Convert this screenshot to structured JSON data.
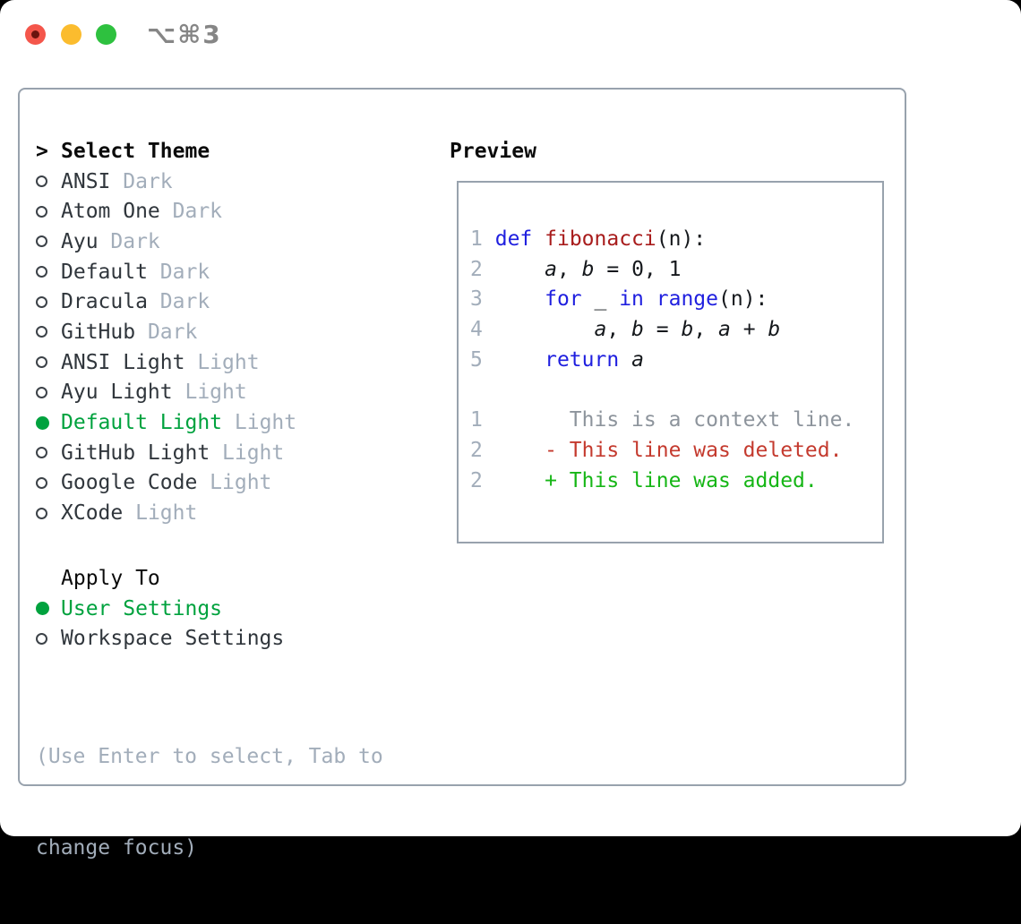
{
  "window": {
    "shortcut_label": "⌥⌘3",
    "traffic_lights": [
      {
        "name": "close",
        "color": "#f4564b"
      },
      {
        "name": "minimize",
        "color": "#fbbc2e"
      },
      {
        "name": "zoom",
        "color": "#2ec13f"
      }
    ]
  },
  "theme_panel": {
    "prompt": ">",
    "header": "Select Theme",
    "themes": [
      {
        "name": "ANSI",
        "variant": "Dark",
        "selected": false
      },
      {
        "name": "Atom One",
        "variant": "Dark",
        "selected": false
      },
      {
        "name": "Ayu",
        "variant": "Dark",
        "selected": false
      },
      {
        "name": "Default",
        "variant": "Dark",
        "selected": false
      },
      {
        "name": "Dracula",
        "variant": "Dark",
        "selected": false
      },
      {
        "name": "GitHub",
        "variant": "Dark",
        "selected": false
      },
      {
        "name": "ANSI Light",
        "variant": "Light",
        "selected": false
      },
      {
        "name": "Ayu Light",
        "variant": "Light",
        "selected": false
      },
      {
        "name": "Default Light",
        "variant": "Light",
        "selected": true
      },
      {
        "name": "GitHub Light",
        "variant": "Light",
        "selected": false
      },
      {
        "name": "Google Code",
        "variant": "Light",
        "selected": false
      },
      {
        "name": "XCode",
        "variant": "Light",
        "selected": false
      }
    ],
    "apply_to": {
      "header": "Apply To",
      "options": [
        {
          "label": "User Settings",
          "selected": true
        },
        {
          "label": "Workspace Settings",
          "selected": false
        }
      ]
    },
    "help_lines": [
      "(Use Enter to select, Tab to",
      "change focus)"
    ]
  },
  "preview": {
    "header": "Preview",
    "code_lines": [
      [
        [
          "num",
          "1"
        ],
        [
          "pl",
          " "
        ],
        [
          "kw",
          "def"
        ],
        [
          "pl",
          " "
        ],
        [
          "fn",
          "fibonacci"
        ],
        [
          "pl",
          "(n):"
        ]
      ],
      [
        [
          "num",
          "2"
        ],
        [
          "pl",
          "     "
        ],
        [
          "var",
          "a"
        ],
        [
          "pl",
          ", "
        ],
        [
          "var",
          "b"
        ],
        [
          "pl",
          " = 0, 1"
        ]
      ],
      [
        [
          "num",
          "3"
        ],
        [
          "pl",
          "     "
        ],
        [
          "kw",
          "for"
        ],
        [
          "pl",
          " _ "
        ],
        [
          "kw",
          "in"
        ],
        [
          "pl",
          " "
        ],
        [
          "kw",
          "range"
        ],
        [
          "pl",
          "(n):"
        ]
      ],
      [
        [
          "num",
          "4"
        ],
        [
          "pl",
          "         "
        ],
        [
          "var",
          "a"
        ],
        [
          "pl",
          ", "
        ],
        [
          "var",
          "b"
        ],
        [
          "pl",
          " = "
        ],
        [
          "var",
          "b"
        ],
        [
          "pl",
          ", "
        ],
        [
          "var",
          "a"
        ],
        [
          "pl",
          " + "
        ],
        [
          "var",
          "b"
        ]
      ],
      [
        [
          "num",
          "5"
        ],
        [
          "pl",
          "     "
        ],
        [
          "kw",
          "return"
        ],
        [
          "pl",
          " "
        ],
        [
          "var",
          "a"
        ]
      ],
      [],
      [
        [
          "num",
          "1"
        ],
        [
          "pl",
          "       "
        ],
        [
          "ctx",
          "This is a context line."
        ]
      ],
      [
        [
          "num",
          "2"
        ],
        [
          "pl",
          "     "
        ],
        [
          "del",
          "- This line was deleted."
        ]
      ],
      [
        [
          "num",
          "2"
        ],
        [
          "pl",
          "     "
        ],
        [
          "add",
          "+ This line was added."
        ]
      ]
    ]
  },
  "colors": {
    "accent_green": "#00a23e",
    "keyword_blue": "#1f1fdf",
    "function_red": "#a81c1c",
    "deleted_red": "#c43a2e",
    "added_green": "#16b616",
    "muted_gray": "#a2adba",
    "context_gray": "#8d949c",
    "border_gray": "#98a2ad",
    "text_dark": "#30363c"
  }
}
